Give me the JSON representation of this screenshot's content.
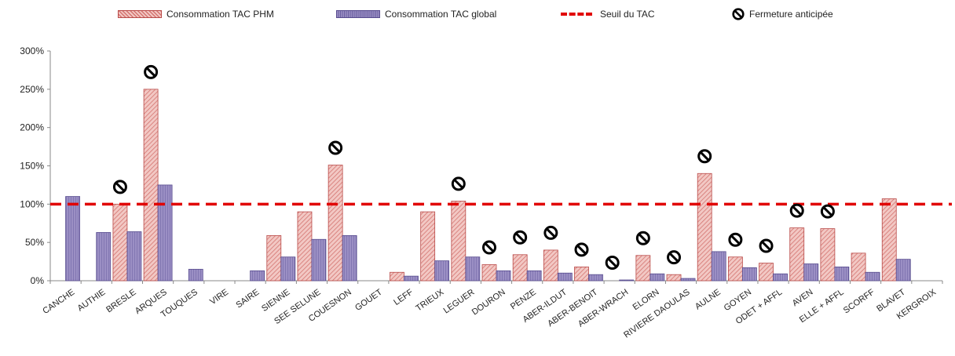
{
  "legend": {
    "phm": "Consommation TAC PHM",
    "global": "Consommation TAC global",
    "threshold": "Seuil du TAC",
    "closure": "Fermeture anticipée"
  },
  "colors": {
    "phm_fill": "#f2c8c4",
    "phm_stroke": "#b94a48",
    "global_fill": "#8f84bd",
    "global_stroke": "#574b8e",
    "threshold": "#e10000"
  },
  "chart_data": {
    "type": "bar",
    "title": "",
    "xlabel": "",
    "ylabel": "",
    "ylim": [
      0,
      300
    ],
    "y_ticks": [
      "0%",
      "50%",
      "100%",
      "150%",
      "200%",
      "250%",
      "300%"
    ],
    "y_unit": "%",
    "grid": false,
    "legend_position": "top",
    "categories": [
      "CANCHE",
      "AUTHIE",
      "BRESLE",
      "ARQUES",
      "TOUQUES",
      "VIRE",
      "SAIRE",
      "SIENNE",
      "SEE SELUNE",
      "COUESNON",
      "GOUET",
      "LEFF",
      "TRIEUX",
      "LEGUER",
      "DOURON",
      "PENZE",
      "ABER-ILDUT",
      "ABER-BENOIT",
      "ABER-WRACH",
      "ELORN",
      "RIVIERE DAOULAS",
      "AULNE",
      "GOYEN",
      "ODET + AFFL",
      "AVEN",
      "ELLE + AFFL",
      "SCORFF",
      "BLAVET",
      "KERGROIX"
    ],
    "series": [
      {
        "name": "Consommation TAC PHM",
        "values": [
          0,
          0,
          100,
          250,
          0,
          0,
          0,
          59,
          90,
          151,
          0,
          11,
          90,
          104,
          21,
          34,
          40,
          18,
          0,
          33,
          8,
          140,
          31,
          23,
          69,
          68,
          36,
          107,
          0
        ]
      },
      {
        "name": "Consommation TAC global",
        "values": [
          110,
          63,
          64,
          125,
          15,
          0,
          13,
          31,
          54,
          59,
          0,
          6,
          26,
          31,
          13,
          13,
          10,
          8,
          1,
          9,
          3,
          38,
          17,
          9,
          22,
          18,
          11,
          28,
          0
        ]
      }
    ],
    "threshold": {
      "name": "Seuil du TAC",
      "value": 100
    },
    "closure_markers": {
      "name": "Fermeture anticipée",
      "categories": [
        "BRESLE",
        "ARQUES",
        "COUESNON",
        "LEGUER",
        "DOURON",
        "PENZE",
        "ABER-ILDUT",
        "ABER-BENOIT",
        "ABER-WRACH",
        "ELORN",
        "RIVIERE DAOULAS",
        "AULNE",
        "GOYEN",
        "ODET + AFFL",
        "AVEN",
        "ELLE + AFFL"
      ]
    }
  }
}
